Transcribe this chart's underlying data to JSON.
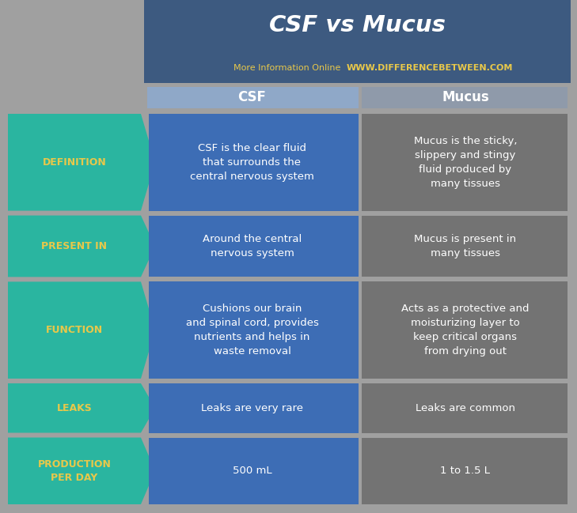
{
  "title": "CSF vs Mucus",
  "subtitle_left": "More Information Online",
  "subtitle_right": "WWW.DIFFERENCEBETWEEN.COM",
  "col_header_csf": "CSF",
  "col_header_mucus": "Mucus",
  "rows": [
    {
      "label": "DEFINITION",
      "csf": "CSF is the clear fluid\nthat surrounds the\ncentral nervous system",
      "mucus": "Mucus is the sticky,\nslippery and stingy\nfluid produced by\nmany tissues"
    },
    {
      "label": "PRESENT IN",
      "csf": "Around the central\nnervous system",
      "mucus": "Mucus is present in\nmany tissues"
    },
    {
      "label": "FUNCTION",
      "csf": "Cushions our brain\nand spinal cord, provides\nnutrients and helps in\nwaste removal",
      "mucus": "Acts as a protective and\nmoisturizing layer to\nkeep critical organs\nfrom drying out"
    },
    {
      "label": "LEAKS",
      "csf": "Leaks are very rare",
      "mucus": "Leaks are common"
    },
    {
      "label": "PRODUCTION\nPER DAY",
      "csf": "500 mL",
      "mucus": "1 to 1.5 L"
    }
  ],
  "colors": {
    "header_bg": "#3d5a80",
    "title_text": "#ffffff",
    "subtitle_left_text": "#e8c84a",
    "subtitle_right_text": "#e8c84a",
    "col_header_bg_csf": "#8fa8c8",
    "col_header_bg_mucus": "#8f9aaa",
    "csf_cell_bg": "#3d6db5",
    "mucus_cell_bg": "#737373",
    "cell_text": "#ffffff",
    "label_arrow_bg": "#2ab5a0",
    "label_text": "#e8c84a",
    "background": "#a0a0a0"
  }
}
